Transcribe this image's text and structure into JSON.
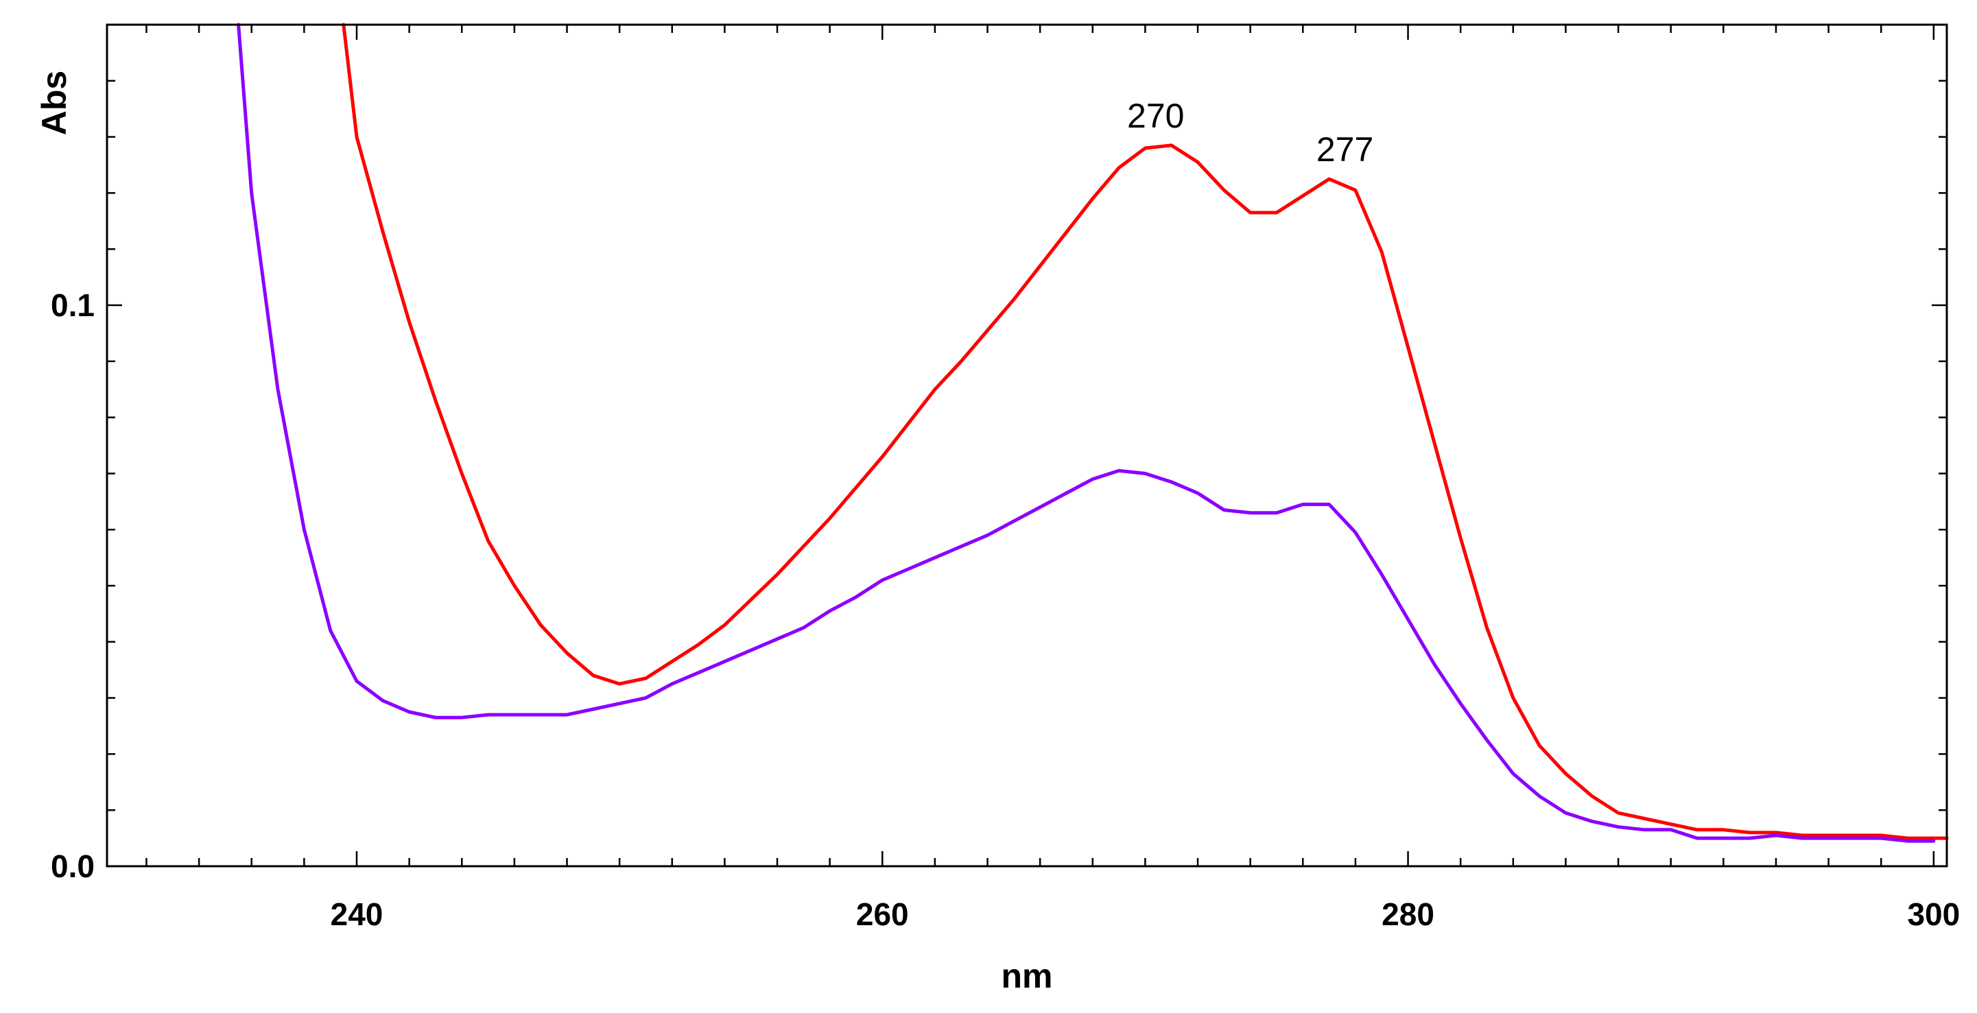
{
  "chart_data": {
    "type": "line",
    "title": "",
    "xlabel": "nm",
    "ylabel": "Abs",
    "xlim": [
      230.5,
      300.5
    ],
    "ylim": [
      0.0,
      0.15
    ],
    "x_ticks": [
      240,
      260,
      280,
      300
    ],
    "y_ticks": [
      0.0,
      0.1
    ],
    "x_tick_labels": [
      "240",
      "260",
      "280",
      "300"
    ],
    "y_tick_labels": [
      "0.0",
      "0.1"
    ],
    "x_minor_step": 2,
    "y_minor_step": 0.01,
    "grid": false,
    "legend": "none",
    "series": [
      {
        "color": "#ff0000",
        "x": [
          239.5,
          240,
          241,
          242,
          243,
          244,
          245,
          246,
          247,
          248,
          249,
          250,
          251,
          252,
          253,
          254,
          255,
          256,
          257,
          258,
          259,
          260,
          261,
          262,
          263,
          264,
          265,
          266,
          267,
          268,
          269,
          270,
          271,
          272,
          273,
          274,
          275,
          276,
          277,
          278,
          279,
          280,
          281,
          282,
          283,
          284,
          285,
          286,
          287,
          288,
          289,
          290,
          291,
          292,
          293,
          294,
          295,
          296,
          297,
          298,
          299,
          300,
          300.5
        ],
        "y": [
          0.15,
          0.13,
          0.113,
          0.097,
          0.083,
          0.07,
          0.058,
          0.05,
          0.043,
          0.038,
          0.034,
          0.0325,
          0.0335,
          0.0365,
          0.0395,
          0.043,
          0.0475,
          0.052,
          0.057,
          0.062,
          0.0675,
          0.073,
          0.079,
          0.085,
          0.09,
          0.0955,
          0.101,
          0.107,
          0.113,
          0.119,
          0.1245,
          0.128,
          0.1285,
          0.1255,
          0.1205,
          0.1165,
          0.1165,
          0.1195,
          0.1225,
          0.1205,
          0.1095,
          0.0925,
          0.0755,
          0.0585,
          0.0425,
          0.03,
          0.0215,
          0.0165,
          0.0125,
          0.0095,
          0.0085,
          0.0075,
          0.0065,
          0.0065,
          0.006,
          0.006,
          0.0055,
          0.0055,
          0.0055,
          0.0055,
          0.005,
          0.005,
          0.005
        ]
      },
      {
        "color": "#8b00ff",
        "x": [
          235.5,
          236,
          237,
          238,
          239,
          240,
          241,
          242,
          243,
          244,
          245,
          246,
          247,
          248,
          249,
          250,
          251,
          252,
          253,
          254,
          255,
          256,
          257,
          258,
          259,
          260,
          261,
          262,
          263,
          264,
          265,
          266,
          267,
          268,
          269,
          270,
          271,
          272,
          273,
          274,
          275,
          276,
          277,
          278,
          279,
          280,
          281,
          282,
          283,
          284,
          285,
          286,
          287,
          288,
          289,
          290,
          291,
          292,
          293,
          294,
          295,
          296,
          297,
          298,
          299,
          300
        ],
        "y": [
          0.15,
          0.12,
          0.085,
          0.06,
          0.042,
          0.033,
          0.0295,
          0.0275,
          0.0265,
          0.0265,
          0.027,
          0.027,
          0.027,
          0.027,
          0.028,
          0.029,
          0.03,
          0.0325,
          0.0345,
          0.0365,
          0.0385,
          0.0405,
          0.0425,
          0.0455,
          0.048,
          0.051,
          0.053,
          0.055,
          0.057,
          0.059,
          0.0615,
          0.064,
          0.0665,
          0.069,
          0.0705,
          0.07,
          0.0685,
          0.0665,
          0.0635,
          0.063,
          0.063,
          0.0645,
          0.0645,
          0.0595,
          0.052,
          0.044,
          0.036,
          0.029,
          0.0225,
          0.0165,
          0.0125,
          0.0095,
          0.008,
          0.007,
          0.0065,
          0.0065,
          0.005,
          0.005,
          0.005,
          0.0055,
          0.005,
          0.005,
          0.005,
          0.005,
          0.0045,
          0.0045
        ]
      }
    ],
    "annotations": [
      {
        "text": "270",
        "x": 270.4,
        "y": 0.1285
      },
      {
        "text": "277",
        "x": 277.6,
        "y": 0.1225
      }
    ]
  }
}
